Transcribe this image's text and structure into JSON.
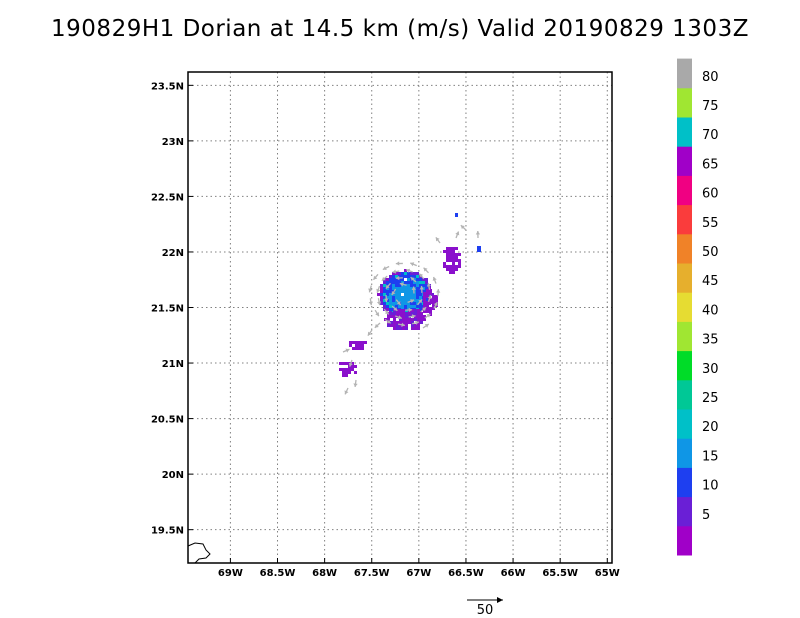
{
  "title": "190829H1 Dorian at 14.5 km (m/s) Valid 20190829 1303Z",
  "map": {
    "lon_range": [
      -69.45,
      -64.95
    ],
    "lat_range": [
      19.2,
      23.62
    ],
    "x_ticks": [
      {
        "lon": -69.0,
        "label": "69W"
      },
      {
        "lon": -68.5,
        "label": "68.5W"
      },
      {
        "lon": -68.0,
        "label": "68W"
      },
      {
        "lon": -67.5,
        "label": "67.5W"
      },
      {
        "lon": -67.0,
        "label": "67W"
      },
      {
        "lon": -66.5,
        "label": "66.5W"
      },
      {
        "lon": -66.0,
        "label": "66W"
      },
      {
        "lon": -65.5,
        "label": "65.5W"
      },
      {
        "lon": -65.0,
        "label": "65W"
      }
    ],
    "y_ticks": [
      {
        "lat": 19.5,
        "label": "19.5N"
      },
      {
        "lat": 20.0,
        "label": "20N"
      },
      {
        "lat": 20.5,
        "label": "20.5N"
      },
      {
        "lat": 21.0,
        "label": "21N"
      },
      {
        "lat": 21.5,
        "label": "21.5N"
      },
      {
        "lat": 22.0,
        "label": "22N"
      },
      {
        "lat": 22.5,
        "label": "22.5N"
      },
      {
        "lat": 23.0,
        "label": "23N"
      },
      {
        "lat": 23.5,
        "label": "23.5N"
      }
    ],
    "grid": "dotted"
  },
  "colorbar": {
    "bins": [
      {
        "color": "#a000c8",
        "label": "5"
      },
      {
        "color": "#6a1fd6",
        "label": "10"
      },
      {
        "color": "#1e3ff0",
        "label": "15"
      },
      {
        "color": "#0f96e6",
        "label": "20"
      },
      {
        "color": "#00c0c8",
        "label": "25"
      },
      {
        "color": "#00c896",
        "label": "30"
      },
      {
        "color": "#00dc28",
        "label": "35"
      },
      {
        "color": "#a0e632",
        "label": "40"
      },
      {
        "color": "#e6dc32",
        "label": "45"
      },
      {
        "color": "#e6af2d",
        "label": "50"
      },
      {
        "color": "#f08228",
        "label": "55"
      },
      {
        "color": "#fa3c3c",
        "label": "60"
      },
      {
        "color": "#f00082",
        "label": "65"
      },
      {
        "color": "#a000c8",
        "label": "70"
      },
      {
        "color": "#00c0c8",
        "label": "75"
      },
      {
        "color": "#a0e632",
        "label": "80"
      },
      {
        "color": "#a9a9a9",
        "label": ""
      }
    ]
  },
  "reference_vector": {
    "label": "50"
  },
  "colors": {
    "arrow": "#b4b4b4",
    "coastline": "#000000",
    "grid": "#808080"
  }
}
